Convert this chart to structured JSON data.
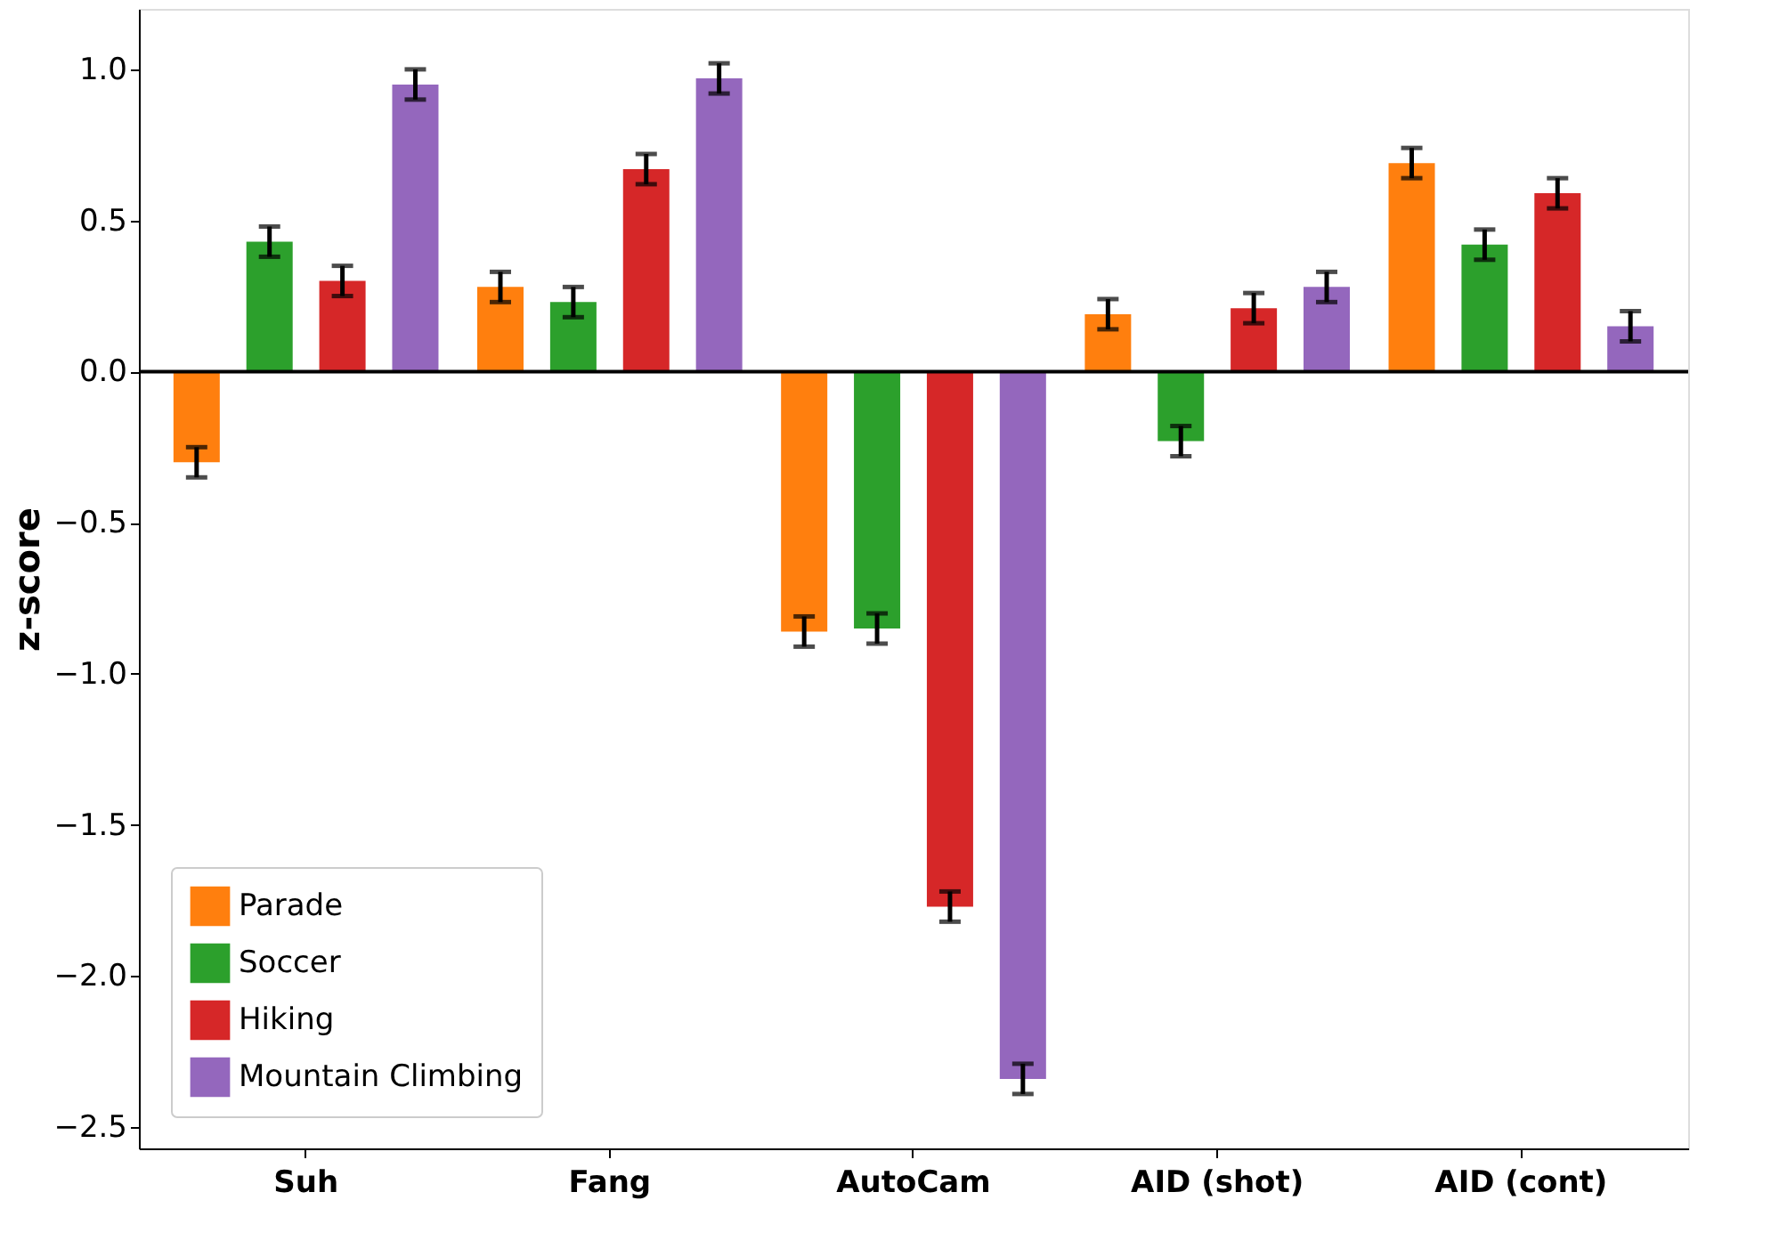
{
  "chart_data": {
    "type": "bar",
    "ylabel": "z-score",
    "categories": [
      "Suh",
      "Fang",
      "AutoCam",
      "AID (shot)",
      "AID (cont)"
    ],
    "series": [
      {
        "name": "Parade",
        "color": "#ff7f0e",
        "values": [
          -0.3,
          0.28,
          -0.86,
          0.19,
          0.69
        ],
        "errors": [
          0.05,
          0.05,
          0.05,
          0.05,
          0.05
        ]
      },
      {
        "name": "Soccer",
        "color": "#2ca02c",
        "values": [
          0.43,
          0.23,
          -0.85,
          -0.23,
          0.42
        ],
        "errors": [
          0.05,
          0.05,
          0.05,
          0.05,
          0.05
        ]
      },
      {
        "name": "Hiking",
        "color": "#d62728",
        "values": [
          0.3,
          0.67,
          -1.77,
          0.21,
          0.59
        ],
        "errors": [
          0.05,
          0.05,
          0.05,
          0.05,
          0.05
        ]
      },
      {
        "name": "Mountain Climbing",
        "color": "#9467bd",
        "values": [
          0.95,
          0.97,
          -2.34,
          0.28,
          0.15
        ],
        "errors": [
          0.05,
          0.05,
          0.05,
          0.05,
          0.05
        ]
      }
    ],
    "ylim": [
      -2.57,
      1.2
    ],
    "yticks": [
      {
        "value": -2.5,
        "label": "−2.5"
      },
      {
        "value": -2.0,
        "label": "−2.0"
      },
      {
        "value": -1.5,
        "label": "−1.5"
      },
      {
        "value": -1.0,
        "label": "−1.0"
      },
      {
        "value": -0.5,
        "label": "−0.5"
      },
      {
        "value": 0,
        "label": "0.0"
      },
      {
        "value": 0.5,
        "label": "0.5"
      },
      {
        "value": 1,
        "label": "1.0"
      }
    ],
    "ref_lines": [
      {
        "axis": "y",
        "value": 0,
        "color": "#000000"
      }
    ],
    "legend": "bottom left",
    "grid": false
  }
}
